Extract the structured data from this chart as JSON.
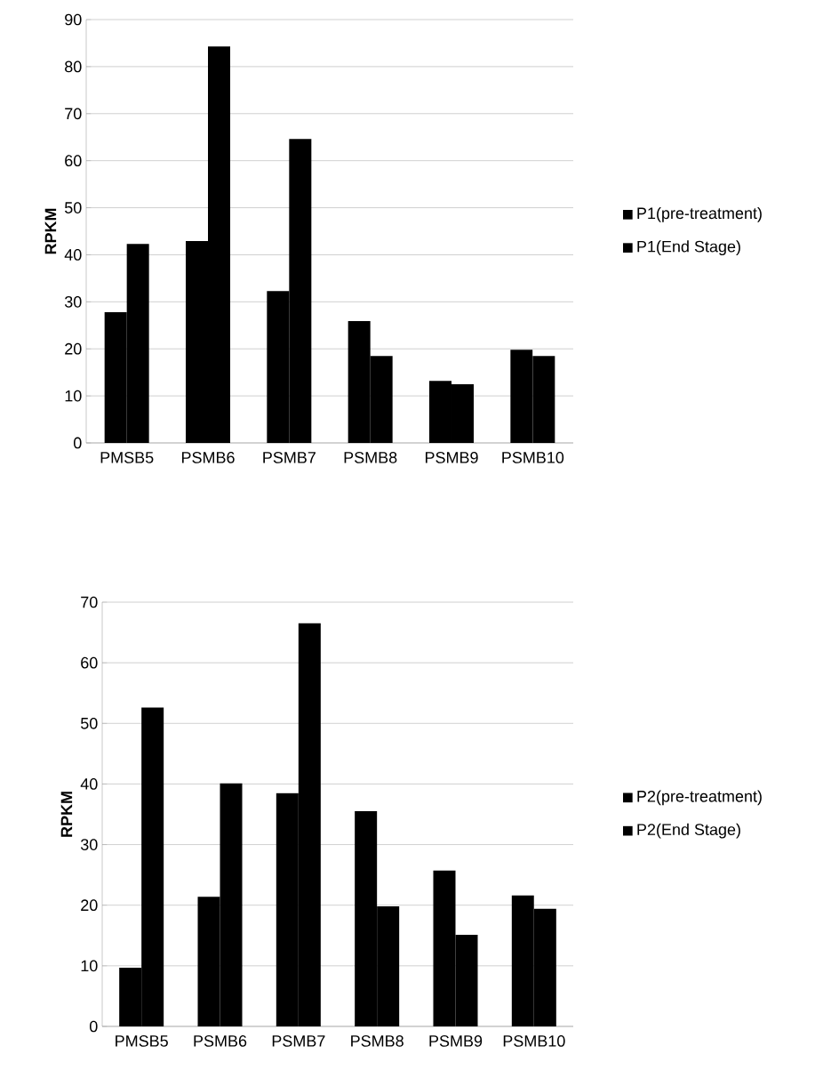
{
  "chart_data": [
    {
      "type": "bar",
      "ylabel": "RPKM",
      "categories": [
        "PMSB5",
        "PSMB6",
        "PSMB7",
        "PSMB8",
        "PSMB9",
        "PSMB10"
      ],
      "series": [
        {
          "name": "P1(pre-treatment)",
          "color": "#000000",
          "values": [
            27.8,
            42.9,
            32.3,
            25.9,
            13.2,
            19.8
          ]
        },
        {
          "name": "P1(End Stage)",
          "color": "#000000",
          "values": [
            42.3,
            84.3,
            64.6,
            18.5,
            12.5,
            18.5
          ]
        }
      ],
      "ylim": [
        0,
        90
      ],
      "yticks": [
        0,
        10,
        20,
        30,
        40,
        50,
        60,
        70,
        80,
        90
      ],
      "grid": "y",
      "legend": "right"
    },
    {
      "type": "bar",
      "ylabel": "RPKM",
      "categories": [
        "PMSB5",
        "PSMB6",
        "PSMB7",
        "PSMB8",
        "PSMB9",
        "PSMB10"
      ],
      "series": [
        {
          "name": "P2(pre-treatment)",
          "color": "#000000",
          "values": [
            9.7,
            21.4,
            38.5,
            35.5,
            25.7,
            21.6
          ]
        },
        {
          "name": "P2(End Stage)",
          "color": "#000000",
          "values": [
            52.6,
            40.1,
            66.5,
            19.8,
            15.1,
            19.4
          ]
        }
      ],
      "ylim": [
        0,
        70
      ],
      "yticks": [
        0,
        10,
        20,
        30,
        40,
        50,
        60,
        70
      ],
      "grid": "y",
      "legend": "right"
    }
  ]
}
